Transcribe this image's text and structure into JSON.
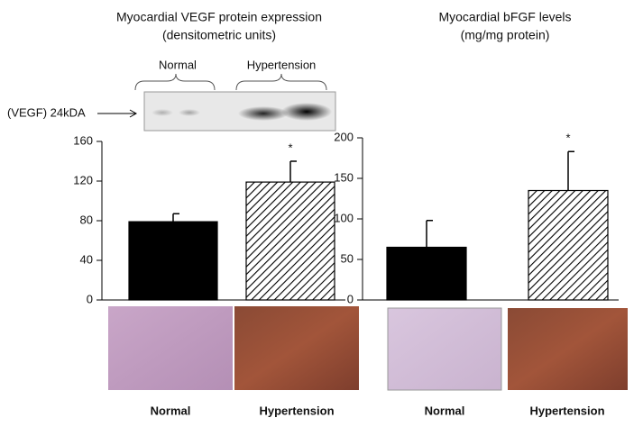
{
  "chart_data": [
    {
      "type": "bar",
      "title": "Myocardial VEGF protein expression",
      "subtitle": "(densitometric units)",
      "categories": [
        "Normal",
        "Hypertension"
      ],
      "values": [
        79,
        119
      ],
      "errors": [
        8,
        21
      ],
      "fills": [
        "solid",
        "hatched"
      ],
      "color": "#000000",
      "ylim": [
        0,
        160
      ],
      "yticks": [
        0,
        40,
        80,
        120,
        160
      ],
      "annotations": [
        {
          "category": "Hypertension",
          "text": "*"
        }
      ],
      "blot": {
        "label": "(VEGF) 24kDA",
        "lanes": [
          "Normal",
          "Hypertension"
        ]
      }
    },
    {
      "type": "bar",
      "title": "Myocardial bFGF levels",
      "subtitle": "(mg/mg protein)",
      "categories": [
        "Normal",
        "Hypertension"
      ],
      "values": [
        65,
        135
      ],
      "errors": [
        33,
        48
      ],
      "fills": [
        "solid",
        "hatched"
      ],
      "color": "#000000",
      "ylim": [
        0,
        200
      ],
      "yticks": [
        0,
        50,
        100,
        150,
        200
      ],
      "annotations": [
        {
          "category": "Hypertension",
          "text": "*"
        }
      ]
    }
  ]
}
